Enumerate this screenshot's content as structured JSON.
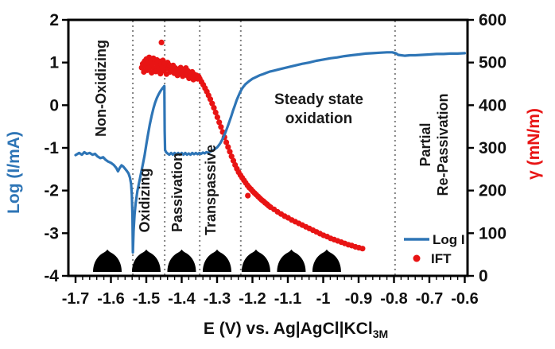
{
  "chart_data": {
    "type": "line+scatter",
    "title": "",
    "x_axis": {
      "title_main": "E (V) vs. Ag|AgCl|KCl",
      "title_sub": "3M",
      "min": -1.7,
      "max": -0.6,
      "tick_values": [
        -1.7,
        -1.6,
        -1.5,
        -1.4,
        -1.3,
        -1.2,
        -1.1,
        -1.0,
        -0.9,
        -0.8,
        -0.7,
        -0.6
      ],
      "tick_labels": [
        "-1.7",
        "-1.6",
        "-1.5",
        "-1.4",
        "-1.3",
        "-1.2",
        "-1.1",
        "-1",
        "-0.9",
        "-0.8",
        "-0.7",
        "-0.6"
      ],
      "minor_tick_step": 0.02
    },
    "y_left": {
      "title": "Log (I/mA)",
      "color": "#2E75B6",
      "min": -4,
      "max": 2,
      "tick_values": [
        2,
        1,
        0,
        -1,
        -2,
        -3,
        -4
      ],
      "tick_labels": [
        "2",
        "1",
        "0",
        "-1",
        "-2",
        "-3",
        "-4"
      ]
    },
    "y_right": {
      "title": "γ (mN/m)",
      "color": "#E81414",
      "min": 0,
      "max": 600,
      "tick_values": [
        600,
        500,
        400,
        300,
        200,
        100,
        0
      ],
      "tick_labels": [
        "600",
        "500",
        "400",
        "300",
        "200",
        "100",
        "0"
      ]
    },
    "region_boundaries_E": [
      -1.538,
      -1.448,
      -1.349,
      -1.233,
      -0.797
    ],
    "regions": {
      "non_oxidizing": "Non-Oxidizing",
      "oxidizing": "Oxidizing",
      "passivation": "Passivation",
      "transpassive": "Transpassive",
      "steady_state_lines": [
        "Steady state",
        "oxidation"
      ],
      "partial_lines": [
        "Partial",
        "Re-Passivation"
      ]
    },
    "droplets_E": [
      -1.61,
      -1.5,
      -1.4,
      -1.3,
      -1.19,
      -1.09,
      -0.99
    ],
    "legend": {
      "items": [
        {
          "label": "Log I",
          "marker": "line",
          "color": "#2E75B6"
        },
        {
          "label": "IFT",
          "marker": "dot",
          "color": "#E81414"
        }
      ]
    },
    "boundary_color": "#808080",
    "series": [
      {
        "name": "Log I",
        "type": "line",
        "axis": "left",
        "color": "#2E75B6",
        "points": [
          [
            -1.7,
            -1.17
          ],
          [
            -1.69,
            -1.12
          ],
          [
            -1.682,
            -1.16
          ],
          [
            -1.675,
            -1.1
          ],
          [
            -1.668,
            -1.14
          ],
          [
            -1.66,
            -1.12
          ],
          [
            -1.652,
            -1.16
          ],
          [
            -1.645,
            -1.14
          ],
          [
            -1.638,
            -1.2
          ],
          [
            -1.63,
            -1.24
          ],
          [
            -1.622,
            -1.22
          ],
          [
            -1.615,
            -1.28
          ],
          [
            -1.608,
            -1.32
          ],
          [
            -1.6,
            -1.35
          ],
          [
            -1.592,
            -1.4
          ],
          [
            -1.585,
            -1.47
          ],
          [
            -1.58,
            -1.55
          ],
          [
            -1.575,
            -1.47
          ],
          [
            -1.57,
            -1.41
          ],
          [
            -1.565,
            -1.44
          ],
          [
            -1.56,
            -1.49
          ],
          [
            -1.555,
            -1.54
          ],
          [
            -1.55,
            -1.6
          ],
          [
            -1.546,
            -1.7
          ],
          [
            -1.543,
            -1.85
          ],
          [
            -1.541,
            -2.1
          ],
          [
            -1.539,
            -2.6
          ],
          [
            -1.538,
            -3.45
          ],
          [
            -1.536,
            -2.95
          ],
          [
            -1.533,
            -2.55
          ],
          [
            -1.53,
            -2.3
          ],
          [
            -1.525,
            -2.0
          ],
          [
            -1.52,
            -1.8
          ],
          [
            -1.515,
            -1.6
          ],
          [
            -1.51,
            -1.4
          ],
          [
            -1.505,
            -1.18
          ],
          [
            -1.5,
            -0.92
          ],
          [
            -1.495,
            -0.68
          ],
          [
            -1.49,
            -0.45
          ],
          [
            -1.485,
            -0.25
          ],
          [
            -1.48,
            -0.08
          ],
          [
            -1.475,
            0.06
          ],
          [
            -1.47,
            0.17
          ],
          [
            -1.465,
            0.26
          ],
          [
            -1.46,
            0.33
          ],
          [
            -1.455,
            0.39
          ],
          [
            -1.451,
            0.43
          ],
          [
            -1.449,
            0.45
          ],
          [
            -1.448,
            -0.6
          ],
          [
            -1.447,
            -1.05
          ],
          [
            -1.444,
            -1.1
          ],
          [
            -1.44,
            -1.13
          ],
          [
            -1.435,
            -1.16
          ],
          [
            -1.43,
            -1.12
          ],
          [
            -1.425,
            -1.16
          ],
          [
            -1.42,
            -1.12
          ],
          [
            -1.415,
            -1.16
          ],
          [
            -1.41,
            -1.12
          ],
          [
            -1.405,
            -1.16
          ],
          [
            -1.4,
            -1.12
          ],
          [
            -1.395,
            -1.16
          ],
          [
            -1.39,
            -1.12
          ],
          [
            -1.385,
            -1.16
          ],
          [
            -1.38,
            -1.13
          ],
          [
            -1.375,
            -1.16
          ],
          [
            -1.37,
            -1.12
          ],
          [
            -1.365,
            -1.15
          ],
          [
            -1.36,
            -1.12
          ],
          [
            -1.355,
            -1.15
          ],
          [
            -1.35,
            -1.12
          ],
          [
            -1.345,
            -1.14
          ],
          [
            -1.34,
            -1.11
          ],
          [
            -1.335,
            -1.13
          ],
          [
            -1.33,
            -1.1
          ],
          [
            -1.325,
            -1.12
          ],
          [
            -1.32,
            -1.09
          ],
          [
            -1.315,
            -1.07
          ],
          [
            -1.31,
            -1.05
          ],
          [
            -1.305,
            -1.02
          ],
          [
            -1.3,
            -0.99
          ],
          [
            -1.295,
            -0.94
          ],
          [
            -1.29,
            -0.88
          ],
          [
            -1.285,
            -0.8
          ],
          [
            -1.28,
            -0.71
          ],
          [
            -1.275,
            -0.61
          ],
          [
            -1.27,
            -0.5
          ],
          [
            -1.265,
            -0.38
          ],
          [
            -1.26,
            -0.26
          ],
          [
            -1.255,
            -0.13
          ],
          [
            -1.25,
            -0.01
          ],
          [
            -1.245,
            0.11
          ],
          [
            -1.24,
            0.21
          ],
          [
            -1.235,
            0.3
          ],
          [
            -1.23,
            0.38
          ],
          [
            -1.225,
            0.44
          ],
          [
            -1.22,
            0.49
          ],
          [
            -1.21,
            0.56
          ],
          [
            -1.2,
            0.62
          ],
          [
            -1.19,
            0.66
          ],
          [
            -1.18,
            0.7
          ],
          [
            -1.17,
            0.73
          ],
          [
            -1.16,
            0.76
          ],
          [
            -1.15,
            0.79
          ],
          [
            -1.14,
            0.81
          ],
          [
            -1.12,
            0.85
          ],
          [
            -1.1,
            0.89
          ],
          [
            -1.08,
            0.93
          ],
          [
            -1.06,
            0.97
          ],
          [
            -1.04,
            1.0
          ],
          [
            -1.02,
            1.04
          ],
          [
            -1.0,
            1.07
          ],
          [
            -0.98,
            1.1
          ],
          [
            -0.96,
            1.12
          ],
          [
            -0.94,
            1.15
          ],
          [
            -0.92,
            1.17
          ],
          [
            -0.9,
            1.19
          ],
          [
            -0.88,
            1.21
          ],
          [
            -0.86,
            1.22
          ],
          [
            -0.84,
            1.23
          ],
          [
            -0.82,
            1.24
          ],
          [
            -0.805,
            1.24
          ],
          [
            -0.795,
            1.22
          ],
          [
            -0.788,
            1.18
          ],
          [
            -0.78,
            1.17
          ],
          [
            -0.77,
            1.16
          ],
          [
            -0.755,
            1.17
          ],
          [
            -0.74,
            1.17
          ],
          [
            -0.72,
            1.18
          ],
          [
            -0.7,
            1.19
          ],
          [
            -0.68,
            1.2
          ],
          [
            -0.66,
            1.2
          ],
          [
            -0.64,
            1.21
          ],
          [
            -0.62,
            1.21
          ],
          [
            -0.6,
            1.22
          ]
        ]
      },
      {
        "name": "IFT",
        "type": "scatter",
        "axis": "right",
        "color": "#E81414",
        "points": [
          [
            -1.513,
            488
          ],
          [
            -1.51,
            497
          ],
          [
            -1.507,
            478
          ],
          [
            -1.505,
            503
          ],
          [
            -1.502,
            490
          ],
          [
            -1.5,
            508
          ],
          [
            -1.497,
            482
          ],
          [
            -1.495,
            499
          ],
          [
            -1.492,
            512
          ],
          [
            -1.49,
            488
          ],
          [
            -1.487,
            502
          ],
          [
            -1.485,
            476
          ],
          [
            -1.483,
            495
          ],
          [
            -1.48,
            510
          ],
          [
            -1.478,
            486
          ],
          [
            -1.475,
            500
          ],
          [
            -1.473,
            479
          ],
          [
            -1.47,
            506
          ],
          [
            -1.468,
            492
          ],
          [
            -1.465,
            482
          ],
          [
            -1.463,
            503
          ],
          [
            -1.46,
            474
          ],
          [
            -1.458,
            496
          ],
          [
            -1.457,
            547
          ],
          [
            -1.455,
            488
          ],
          [
            -1.453,
            505
          ],
          [
            -1.45,
            481
          ],
          [
            -1.448,
            498
          ],
          [
            -1.445,
            490
          ],
          [
            -1.443,
            473
          ],
          [
            -1.44,
            500
          ],
          [
            -1.438,
            486
          ],
          [
            -1.435,
            494
          ],
          [
            -1.433,
            478
          ],
          [
            -1.43,
            490
          ],
          [
            -1.427,
            482
          ],
          [
            -1.424,
            493
          ],
          [
            -1.421,
            475
          ],
          [
            -1.418,
            487
          ],
          [
            -1.415,
            480
          ],
          [
            -1.412,
            470
          ],
          [
            -1.409,
            484
          ],
          [
            -1.406,
            476
          ],
          [
            -1.403,
            488
          ],
          [
            -1.4,
            479
          ],
          [
            -1.397,
            468
          ],
          [
            -1.394,
            483
          ],
          [
            -1.391,
            474
          ],
          [
            -1.388,
            487
          ],
          [
            -1.385,
            470
          ],
          [
            -1.382,
            480
          ],
          [
            -1.379,
            463
          ],
          [
            -1.376,
            476
          ],
          [
            -1.373,
            468
          ],
          [
            -1.37,
            478
          ],
          [
            -1.367,
            460
          ],
          [
            -1.364,
            472
          ],
          [
            -1.361,
            465
          ],
          [
            -1.358,
            470
          ],
          [
            -1.355,
            462
          ],
          [
            -1.352,
            467
          ],
          [
            -1.349,
            462
          ],
          [
            -1.344,
            455
          ],
          [
            -1.339,
            448
          ],
          [
            -1.334,
            440
          ],
          [
            -1.329,
            432
          ],
          [
            -1.324,
            423
          ],
          [
            -1.319,
            414
          ],
          [
            -1.314,
            404
          ],
          [
            -1.309,
            394
          ],
          [
            -1.304,
            383
          ],
          [
            -1.299,
            372
          ],
          [
            -1.294,
            360
          ],
          [
            -1.289,
            349
          ],
          [
            -1.284,
            337
          ],
          [
            -1.279,
            325
          ],
          [
            -1.274,
            313
          ],
          [
            -1.269,
            302
          ],
          [
            -1.264,
            291
          ],
          [
            -1.259,
            280
          ],
          [
            -1.254,
            270
          ],
          [
            -1.249,
            260
          ],
          [
            -1.244,
            251
          ],
          [
            -1.239,
            243
          ],
          [
            -1.234,
            236
          ],
          [
            -1.229,
            230
          ],
          [
            -1.224,
            224
          ],
          [
            -1.219,
            218
          ],
          [
            -1.214,
            212
          ],
          [
            -1.213,
            188
          ],
          [
            -1.209,
            207
          ],
          [
            -1.204,
            203
          ],
          [
            -1.199,
            198
          ],
          [
            -1.194,
            194
          ],
          [
            -1.189,
            190
          ],
          [
            -1.184,
            186
          ],
          [
            -1.179,
            182
          ],
          [
            -1.174,
            178
          ],
          [
            -1.169,
            175
          ],
          [
            -1.164,
            171
          ],
          [
            -1.159,
            168
          ],
          [
            -1.154,
            164
          ],
          [
            -1.149,
            161
          ],
          [
            -1.139,
            156
          ],
          [
            -1.129,
            150
          ],
          [
            -1.119,
            145
          ],
          [
            -1.109,
            140
          ],
          [
            -1.099,
            136
          ],
          [
            -1.089,
            131
          ],
          [
            -1.079,
            127
          ],
          [
            -1.069,
            123
          ],
          [
            -1.059,
            119
          ],
          [
            -1.049,
            115
          ],
          [
            -1.039,
            111
          ],
          [
            -1.029,
            107
          ],
          [
            -1.019,
            103
          ],
          [
            -1.009,
            99
          ],
          [
            -0.999,
            95
          ],
          [
            -0.989,
            92
          ],
          [
            -0.979,
            88
          ],
          [
            -0.969,
            85
          ],
          [
            -0.959,
            82
          ],
          [
            -0.949,
            79
          ],
          [
            -0.939,
            76
          ],
          [
            -0.929,
            73
          ],
          [
            -0.919,
            71
          ],
          [
            -0.909,
            68
          ],
          [
            -0.899,
            66
          ],
          [
            -0.889,
            64
          ]
        ]
      }
    ]
  }
}
